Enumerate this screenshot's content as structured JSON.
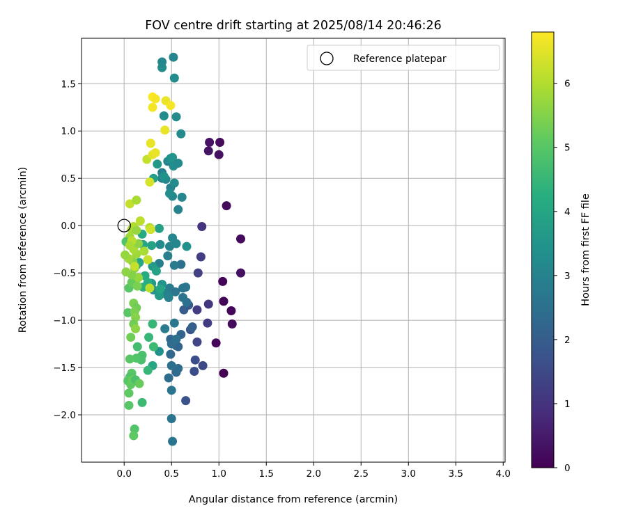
{
  "chart_data": {
    "type": "scatter",
    "title": "FOV centre drift starting at 2025/08/14 20:46:26",
    "xlabel": "Angular distance from reference (arcmin)",
    "ylabel": "Rotation from reference (arcmin)",
    "xlim": [
      -0.45,
      4.02
    ],
    "ylim": [
      -2.5,
      1.98
    ],
    "xticks": [
      0.0,
      0.5,
      1.0,
      1.5,
      2.0,
      2.5,
      3.0,
      3.5,
      4.0
    ],
    "xtick_labels": [
      "0.0",
      "0.5",
      "1.0",
      "1.5",
      "2.0",
      "2.5",
      "3.0",
      "3.5",
      "4.0"
    ],
    "yticks": [
      -2.0,
      -1.5,
      -1.0,
      -0.5,
      0.0,
      0.5,
      1.0,
      1.5
    ],
    "ytick_labels": [
      "−2.0",
      "−1.5",
      "−1.0",
      "−0.5",
      "0.0",
      "0.5",
      "1.0",
      "1.5"
    ],
    "grid": true,
    "legend": {
      "position": "top-right",
      "label": "Reference platepar"
    },
    "reference_point": {
      "x": 0.0,
      "y": 0.0
    },
    "colorbar": {
      "label": "Hours from first FF file",
      "colormap": "viridis",
      "range": [
        0,
        6.8
      ],
      "ticks": [
        0,
        1,
        2,
        3,
        4,
        5,
        6
      ],
      "tick_labels": [
        "0",
        "1",
        "2",
        "3",
        "4",
        "5",
        "6"
      ]
    },
    "points": [
      {
        "x": 0.9,
        "y": 0.88,
        "t": 0.3
      },
      {
        "x": 1.01,
        "y": 0.88,
        "t": 0.2
      },
      {
        "x": 0.89,
        "y": 0.79,
        "t": 0.4
      },
      {
        "x": 1.0,
        "y": 0.75,
        "t": 0.3
      },
      {
        "x": 1.08,
        "y": 0.21,
        "t": 0.2
      },
      {
        "x": 1.23,
        "y": -0.14,
        "t": 0.2
      },
      {
        "x": 1.23,
        "y": -0.5,
        "t": 0.3
      },
      {
        "x": 1.04,
        "y": -0.59,
        "t": 0.1
      },
      {
        "x": 1.05,
        "y": -0.8,
        "t": 0.1
      },
      {
        "x": 1.13,
        "y": -0.9,
        "t": 0.1
      },
      {
        "x": 1.14,
        "y": -1.04,
        "t": 0.2
      },
      {
        "x": 0.97,
        "y": -1.24,
        "t": 0.1
      },
      {
        "x": 1.05,
        "y": -1.56,
        "t": 0.0
      },
      {
        "x": 0.82,
        "y": -0.01,
        "t": 1.0
      },
      {
        "x": 0.81,
        "y": -0.33,
        "t": 1.2
      },
      {
        "x": 0.78,
        "y": -0.5,
        "t": 1.3
      },
      {
        "x": 0.89,
        "y": -0.83,
        "t": 1.1
      },
      {
        "x": 0.77,
        "y": -0.89,
        "t": 1.2
      },
      {
        "x": 0.88,
        "y": -1.03,
        "t": 1.2
      },
      {
        "x": 0.77,
        "y": -1.23,
        "t": 1.4
      },
      {
        "x": 0.83,
        "y": -1.48,
        "t": 1.5
      },
      {
        "x": 0.75,
        "y": -1.42,
        "t": 1.6
      },
      {
        "x": 0.74,
        "y": -1.54,
        "t": 1.6
      },
      {
        "x": 0.65,
        "y": -1.85,
        "t": 1.7
      },
      {
        "x": 0.7,
        "y": -1.1,
        "t": 1.8
      },
      {
        "x": 0.68,
        "y": -0.84,
        "t": 1.9
      },
      {
        "x": 0.63,
        "y": -0.89,
        "t": 2.0
      },
      {
        "x": 0.72,
        "y": -1.07,
        "t": 2.1
      },
      {
        "x": 0.6,
        "y": -1.15,
        "t": 2.2
      },
      {
        "x": 0.55,
        "y": -1.27,
        "t": 2.3
      },
      {
        "x": 0.57,
        "y": -1.28,
        "t": 2.2
      },
      {
        "x": 0.49,
        "y": -1.2,
        "t": 2.2
      },
      {
        "x": 0.49,
        "y": -1.36,
        "t": 2.3
      },
      {
        "x": 0.5,
        "y": -1.25,
        "t": 2.4
      },
      {
        "x": 0.55,
        "y": -1.2,
        "t": 2.5
      },
      {
        "x": 0.55,
        "y": -1.55,
        "t": 2.3
      },
      {
        "x": 0.57,
        "y": -1.51,
        "t": 2.4
      },
      {
        "x": 0.5,
        "y": -1.48,
        "t": 2.5
      },
      {
        "x": 0.47,
        "y": -1.61,
        "t": 2.4
      },
      {
        "x": 0.5,
        "y": -1.74,
        "t": 2.6
      },
      {
        "x": 0.5,
        "y": -2.04,
        "t": 2.6
      },
      {
        "x": 0.51,
        "y": -2.28,
        "t": 2.6
      },
      {
        "x": 0.53,
        "y": -1.03,
        "t": 2.7
      },
      {
        "x": 0.43,
        "y": -1.09,
        "t": 2.8
      },
      {
        "x": 0.66,
        "y": -0.81,
        "t": 2.5
      },
      {
        "x": 0.62,
        "y": -0.76,
        "t": 2.6
      },
      {
        "x": 0.65,
        "y": -0.65,
        "t": 2.7
      },
      {
        "x": 0.62,
        "y": -0.66,
        "t": 2.6
      },
      {
        "x": 0.6,
        "y": -0.41,
        "t": 2.5
      },
      {
        "x": 0.53,
        "y": -0.42,
        "t": 2.8
      },
      {
        "x": 0.48,
        "y": -0.66,
        "t": 2.8
      },
      {
        "x": 0.54,
        "y": -0.7,
        "t": 2.7
      },
      {
        "x": 0.45,
        "y": -0.73,
        "t": 2.9
      },
      {
        "x": 0.47,
        "y": -0.76,
        "t": 3.0
      },
      {
        "x": 0.42,
        "y": -0.71,
        "t": 3.0
      },
      {
        "x": 0.37,
        "y": -0.4,
        "t": 2.9
      },
      {
        "x": 0.46,
        "y": -0.32,
        "t": 2.9
      },
      {
        "x": 0.48,
        "y": -0.22,
        "t": 3.0
      },
      {
        "x": 0.51,
        "y": -0.13,
        "t": 3.1
      },
      {
        "x": 0.55,
        "y": -0.19,
        "t": 3.1
      },
      {
        "x": 0.38,
        "y": -0.2,
        "t": 3.2
      },
      {
        "x": 0.66,
        "y": -0.22,
        "t": 3.4
      },
      {
        "x": 0.4,
        "y": -0.62,
        "t": 3.5
      },
      {
        "x": 0.37,
        "y": -1.33,
        "t": 3.4
      },
      {
        "x": 0.61,
        "y": 0.3,
        "t": 3.1
      },
      {
        "x": 0.57,
        "y": 0.17,
        "t": 3.0
      },
      {
        "x": 0.51,
        "y": 0.31,
        "t": 3.2
      },
      {
        "x": 0.49,
        "y": 0.4,
        "t": 3.0
      },
      {
        "x": 0.48,
        "y": 0.34,
        "t": 3.3
      },
      {
        "x": 0.53,
        "y": 0.45,
        "t": 3.2
      },
      {
        "x": 0.4,
        "y": 0.5,
        "t": 3.0
      },
      {
        "x": 0.44,
        "y": 0.49,
        "t": 3.1
      },
      {
        "x": 0.4,
        "y": 0.56,
        "t": 2.9
      },
      {
        "x": 0.42,
        "y": 0.52,
        "t": 3.4
      },
      {
        "x": 0.46,
        "y": 0.68,
        "t": 3.1
      },
      {
        "x": 0.49,
        "y": 0.71,
        "t": 3.4
      },
      {
        "x": 0.51,
        "y": 0.72,
        "t": 3.5
      },
      {
        "x": 0.52,
        "y": 0.63,
        "t": 3.3
      },
      {
        "x": 0.57,
        "y": 0.66,
        "t": 3.2
      },
      {
        "x": 0.35,
        "y": 0.65,
        "t": 3.6
      },
      {
        "x": 0.6,
        "y": 0.97,
        "t": 3.2
      },
      {
        "x": 0.55,
        "y": 1.15,
        "t": 3.2
      },
      {
        "x": 0.42,
        "y": 1.16,
        "t": 3.3
      },
      {
        "x": 0.53,
        "y": 1.56,
        "t": 3.3
      },
      {
        "x": 0.4,
        "y": 1.73,
        "t": 3.1
      },
      {
        "x": 0.4,
        "y": 1.67,
        "t": 3.2
      },
      {
        "x": 0.52,
        "y": 1.78,
        "t": 3.1
      },
      {
        "x": 0.31,
        "y": 0.5,
        "t": 3.8
      },
      {
        "x": 0.29,
        "y": -0.21,
        "t": 3.9
      },
      {
        "x": 0.3,
        "y": -0.43,
        "t": 3.7
      },
      {
        "x": 0.34,
        "y": -0.48,
        "t": 3.9
      },
      {
        "x": 0.29,
        "y": -0.61,
        "t": 3.6
      },
      {
        "x": 0.31,
        "y": -0.68,
        "t": 3.5
      },
      {
        "x": 0.37,
        "y": -0.74,
        "t": 3.7
      },
      {
        "x": 0.38,
        "y": -0.67,
        "t": 4.0
      },
      {
        "x": 0.37,
        "y": -0.03,
        "t": 3.9
      },
      {
        "x": 0.19,
        "y": -0.09,
        "t": 4.1
      },
      {
        "x": 0.2,
        "y": -0.2,
        "t": 4.0
      },
      {
        "x": 0.22,
        "y": -0.53,
        "t": 4.1
      },
      {
        "x": 0.25,
        "y": -0.6,
        "t": 4.2
      },
      {
        "x": 0.2,
        "y": -0.65,
        "t": 4.3
      },
      {
        "x": 0.16,
        "y": -0.39,
        "t": 4.0
      },
      {
        "x": 0.13,
        "y": -0.42,
        "t": 4.2
      },
      {
        "x": 0.3,
        "y": -1.48,
        "t": 4.0
      },
      {
        "x": 0.3,
        "y": -1.04,
        "t": 4.5
      },
      {
        "x": 0.26,
        "y": -1.18,
        "t": 4.5
      },
      {
        "x": 0.31,
        "y": -1.28,
        "t": 4.6
      },
      {
        "x": 0.25,
        "y": -1.53,
        "t": 4.5
      },
      {
        "x": 0.14,
        "y": -1.28,
        "t": 4.7
      },
      {
        "x": 0.19,
        "y": -1.37,
        "t": 4.8
      },
      {
        "x": 0.18,
        "y": -1.42,
        "t": 4.8
      },
      {
        "x": 0.13,
        "y": -1.4,
        "t": 4.9
      },
      {
        "x": 0.06,
        "y": -1.41,
        "t": 5.0
      },
      {
        "x": 0.08,
        "y": -1.56,
        "t": 5.0
      },
      {
        "x": 0.06,
        "y": -1.6,
        "t": 4.9
      },
      {
        "x": 0.04,
        "y": -1.64,
        "t": 5.0
      },
      {
        "x": 0.07,
        "y": -1.68,
        "t": 5.1
      },
      {
        "x": 0.09,
        "y": -1.63,
        "t": 5.2
      },
      {
        "x": 0.12,
        "y": -1.63,
        "t": 4.8
      },
      {
        "x": 0.16,
        "y": -1.67,
        "t": 5.2
      },
      {
        "x": 0.19,
        "y": -1.87,
        "t": 4.6
      },
      {
        "x": 0.05,
        "y": -1.77,
        "t": 5.1
      },
      {
        "x": 0.05,
        "y": -1.9,
        "t": 5.0
      },
      {
        "x": 0.11,
        "y": -2.15,
        "t": 4.9
      },
      {
        "x": 0.1,
        "y": -2.22,
        "t": 5.1
      },
      {
        "x": 0.07,
        "y": -1.18,
        "t": 5.3
      },
      {
        "x": 0.04,
        "y": -0.92,
        "t": 5.0
      },
      {
        "x": 0.1,
        "y": -0.82,
        "t": 5.4
      },
      {
        "x": 0.13,
        "y": -0.87,
        "t": 5.3
      },
      {
        "x": 0.11,
        "y": -0.91,
        "t": 5.4
      },
      {
        "x": 0.12,
        "y": -0.97,
        "t": 5.5
      },
      {
        "x": 0.1,
        "y": -1.04,
        "t": 5.3
      },
      {
        "x": 0.12,
        "y": -1.09,
        "t": 5.6
      },
      {
        "x": 0.05,
        "y": -0.66,
        "t": 5.0
      },
      {
        "x": 0.08,
        "y": -0.6,
        "t": 5.2
      },
      {
        "x": 0.14,
        "y": -0.64,
        "t": 5.4
      },
      {
        "x": 0.11,
        "y": -0.45,
        "t": 5.6
      },
      {
        "x": 0.09,
        "y": -0.38,
        "t": 5.5
      },
      {
        "x": 0.15,
        "y": -0.55,
        "t": 5.7
      },
      {
        "x": 0.08,
        "y": -0.52,
        "t": 5.5
      },
      {
        "x": 0.02,
        "y": -0.49,
        "t": 5.6
      },
      {
        "x": 0.05,
        "y": -0.35,
        "t": 5.8
      },
      {
        "x": 0.01,
        "y": -0.31,
        "t": 5.7
      },
      {
        "x": 0.13,
        "y": -0.3,
        "t": 5.8
      },
      {
        "x": 0.1,
        "y": -0.25,
        "t": 5.9
      },
      {
        "x": 0.15,
        "y": -0.19,
        "t": 5.6
      },
      {
        "x": 0.06,
        "y": -0.12,
        "t": 5.8
      },
      {
        "x": 0.08,
        "y": -0.04,
        "t": 5.9
      },
      {
        "x": 0.1,
        "y": -0.01,
        "t": 6.0
      },
      {
        "x": 0.13,
        "y": -0.05,
        "t": 5.7
      },
      {
        "x": 0.02,
        "y": -0.17,
        "t": 4.9
      },
      {
        "x": 0.08,
        "y": -0.16,
        "t": 6.1
      },
      {
        "x": 0.17,
        "y": 0.05,
        "t": 6.1
      },
      {
        "x": 0.21,
        "y": -0.27,
        "t": 5.9
      },
      {
        "x": 0.25,
        "y": -0.36,
        "t": 6.2
      },
      {
        "x": 0.27,
        "y": -0.02,
        "t": 6.0
      },
      {
        "x": 0.28,
        "y": -0.04,
        "t": 6.3
      },
      {
        "x": 0.27,
        "y": -0.66,
        "t": 6.1
      },
      {
        "x": 0.11,
        "y": -0.43,
        "t": 6.2
      },
      {
        "x": 0.06,
        "y": -0.21,
        "t": 5.9
      },
      {
        "x": 0.06,
        "y": 0.23,
        "t": 6.2
      },
      {
        "x": 0.13,
        "y": 0.27,
        "t": 5.9
      },
      {
        "x": 0.27,
        "y": 0.46,
        "t": 6.4
      },
      {
        "x": 0.24,
        "y": 0.7,
        "t": 6.2
      },
      {
        "x": 0.3,
        "y": 0.75,
        "t": 6.5
      },
      {
        "x": 0.33,
        "y": 0.77,
        "t": 6.6
      },
      {
        "x": 0.28,
        "y": 0.87,
        "t": 6.5
      },
      {
        "x": 0.43,
        "y": 1.01,
        "t": 6.6
      },
      {
        "x": 0.3,
        "y": 1.25,
        "t": 6.7
      },
      {
        "x": 0.44,
        "y": 1.32,
        "t": 6.6
      },
      {
        "x": 0.49,
        "y": 1.27,
        "t": 6.7
      },
      {
        "x": 0.3,
        "y": 1.36,
        "t": 6.8
      },
      {
        "x": 0.33,
        "y": 1.34,
        "t": 6.7
      },
      {
        "x": 0.28,
        "y": 0.87,
        "t": 6.6
      }
    ]
  }
}
